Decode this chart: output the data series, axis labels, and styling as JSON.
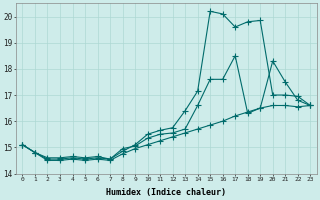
{
  "xlabel": "Humidex (Indice chaleur)",
  "background_color": "#ceecea",
  "grid_color": "#aed8d4",
  "line_color": "#006b6b",
  "xlim": [
    -0.5,
    23.5
  ],
  "ylim": [
    14,
    20.5
  ],
  "yticks": [
    14,
    15,
    16,
    17,
    18,
    19,
    20
  ],
  "xticks": [
    0,
    1,
    2,
    3,
    4,
    5,
    6,
    7,
    8,
    9,
    10,
    11,
    12,
    13,
    14,
    15,
    16,
    17,
    18,
    19,
    20,
    21,
    22,
    23
  ],
  "line1_x": [
    0,
    1,
    2,
    3,
    4,
    5,
    6,
    7,
    8,
    9,
    10,
    11,
    12,
    13,
    14,
    15,
    16,
    17,
    18,
    19,
    20,
    21,
    22,
    23
  ],
  "line1_y": [
    15.1,
    14.8,
    14.6,
    14.6,
    14.65,
    14.6,
    14.65,
    14.55,
    14.95,
    15.05,
    15.35,
    15.5,
    15.55,
    15.7,
    16.6,
    17.6,
    17.6,
    18.5,
    16.3,
    16.5,
    18.3,
    17.5,
    16.8,
    16.6
  ],
  "line2_x": [
    0,
    1,
    2,
    3,
    4,
    5,
    6,
    7,
    8,
    9,
    10,
    11,
    12,
    13,
    14,
    15,
    16,
    17,
    18,
    19,
    20,
    21,
    22,
    23
  ],
  "line2_y": [
    15.1,
    14.8,
    14.55,
    14.55,
    14.6,
    14.55,
    14.6,
    14.55,
    14.85,
    15.1,
    15.5,
    15.65,
    15.75,
    16.4,
    17.15,
    20.2,
    20.1,
    19.6,
    19.8,
    19.85,
    17.0,
    17.0,
    16.95,
    16.6
  ],
  "line3_x": [
    0,
    1,
    2,
    3,
    4,
    5,
    6,
    7,
    8,
    9,
    10,
    11,
    12,
    13,
    14,
    15,
    16,
    17,
    18,
    19,
    20,
    21,
    22,
    23
  ],
  "line3_y": [
    15.1,
    14.8,
    14.5,
    14.5,
    14.55,
    14.5,
    14.55,
    14.5,
    14.75,
    14.95,
    15.1,
    15.25,
    15.4,
    15.55,
    15.7,
    15.85,
    16.0,
    16.2,
    16.35,
    16.5,
    16.6,
    16.6,
    16.55,
    16.6
  ]
}
